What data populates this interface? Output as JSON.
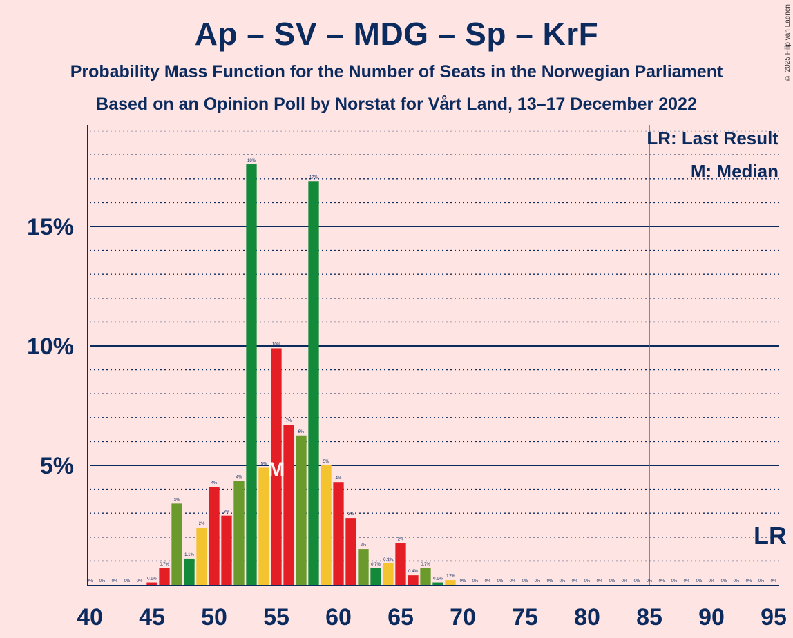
{
  "header": {
    "title": "Ap – SV – MDG – Sp – KrF",
    "subtitle1": "Probability Mass Function for the Number of Seats in the Norwegian Parliament",
    "subtitle2": "Based on an Opinion Poll by Norstat for Vårt Land, 13–17 December 2022",
    "copyright": "© 2025 Filip van Laenen"
  },
  "legend": {
    "lr": "LR: Last Result",
    "m": "M: Median"
  },
  "markers": {
    "median_label": "M",
    "last_result_label": "LR"
  },
  "colors": {
    "background": "#FFE4E4",
    "text": "#0b2a5e",
    "last_result_line": "#e8312f"
  },
  "chart_data": {
    "type": "bar",
    "xlim": [
      40,
      95
    ],
    "ylim": [
      0,
      18.8
    ],
    "x_ticks": [
      40,
      45,
      50,
      55,
      60,
      65,
      70,
      75,
      80,
      85,
      90,
      95
    ],
    "y_ticks": [
      {
        "value": 5,
        "label": "5%"
      },
      {
        "value": 10,
        "label": "10%"
      },
      {
        "value": 15,
        "label": "15%"
      }
    ],
    "median": 55,
    "last_result": 85,
    "grid": true,
    "legend_position": "top-right",
    "bars": [
      {
        "x": 40,
        "value": 0,
        "label": "0%",
        "color": "#e31e24"
      },
      {
        "x": 41,
        "value": 0,
        "label": "0%",
        "color": "#e31e24"
      },
      {
        "x": 42,
        "value": 0,
        "label": "0%",
        "color": "#e31e24"
      },
      {
        "x": 43,
        "value": 0,
        "label": "0%",
        "color": "#e31e24"
      },
      {
        "x": 44,
        "value": 0,
        "label": "0%",
        "color": "#e31e24"
      },
      {
        "x": 45,
        "value": 0.1,
        "label": "0.1%",
        "color": "#e31e24"
      },
      {
        "x": 46,
        "value": 0.7,
        "label": "0.7%",
        "color": "#e31e24"
      },
      {
        "x": 47,
        "value": 3.4,
        "label": "3%",
        "color": "#6a9a2c"
      },
      {
        "x": 48,
        "value": 1.1,
        "label": "1.1%",
        "color": "#138a3a"
      },
      {
        "x": 49,
        "value": 2.4,
        "label": "2%",
        "color": "#f4c430"
      },
      {
        "x": 50,
        "value": 4.1,
        "label": "4%",
        "color": "#e31e24"
      },
      {
        "x": 51,
        "value": 2.9,
        "label": "3%",
        "color": "#e31e24"
      },
      {
        "x": 52,
        "value": 4.35,
        "label": "4%",
        "color": "#6a9a2c"
      },
      {
        "x": 53,
        "value": 17.6,
        "label": "18%",
        "color": "#138a3a"
      },
      {
        "x": 54,
        "value": 4.9,
        "label": "5%",
        "color": "#f4c430"
      },
      {
        "x": 55,
        "value": 9.9,
        "label": "10%",
        "color": "#e31e24"
      },
      {
        "x": 56,
        "value": 6.7,
        "label": "7%",
        "color": "#e31e24"
      },
      {
        "x": 57,
        "value": 6.25,
        "label": "6%",
        "color": "#6a9a2c"
      },
      {
        "x": 58,
        "value": 16.9,
        "label": "17%",
        "color": "#138a3a"
      },
      {
        "x": 59,
        "value": 5.0,
        "label": "5%",
        "color": "#f4c430"
      },
      {
        "x": 60,
        "value": 4.3,
        "label": "4%",
        "color": "#e31e24"
      },
      {
        "x": 61,
        "value": 2.8,
        "label": "3%",
        "color": "#e31e24"
      },
      {
        "x": 62,
        "value": 1.5,
        "label": "2%",
        "color": "#6a9a2c"
      },
      {
        "x": 63,
        "value": 0.7,
        "label": "0.7%",
        "color": "#138a3a"
      },
      {
        "x": 64,
        "value": 0.9,
        "label": "0.9%",
        "color": "#f4c430"
      },
      {
        "x": 65,
        "value": 1.75,
        "label": "2%",
        "color": "#e31e24"
      },
      {
        "x": 66,
        "value": 0.4,
        "label": "0.4%",
        "color": "#e31e24"
      },
      {
        "x": 67,
        "value": 0.7,
        "label": "0.7%",
        "color": "#6a9a2c"
      },
      {
        "x": 68,
        "value": 0.1,
        "label": "0.1%",
        "color": "#138a3a"
      },
      {
        "x": 69,
        "value": 0.2,
        "label": "0.2%",
        "color": "#f4c430"
      },
      {
        "x": 70,
        "value": 0,
        "label": "0%",
        "color": "#e31e24"
      },
      {
        "x": 71,
        "value": 0,
        "label": "0%",
        "color": "#e31e24"
      },
      {
        "x": 72,
        "value": 0,
        "label": "0%",
        "color": "#e31e24"
      },
      {
        "x": 73,
        "value": 0,
        "label": "0%",
        "color": "#e31e24"
      },
      {
        "x": 74,
        "value": 0,
        "label": "0%",
        "color": "#e31e24"
      },
      {
        "x": 75,
        "value": 0,
        "label": "0%",
        "color": "#e31e24"
      },
      {
        "x": 76,
        "value": 0,
        "label": "0%",
        "color": "#e31e24"
      },
      {
        "x": 77,
        "value": 0,
        "label": "0%",
        "color": "#e31e24"
      },
      {
        "x": 78,
        "value": 0,
        "label": "0%",
        "color": "#e31e24"
      },
      {
        "x": 79,
        "value": 0,
        "label": "0%",
        "color": "#e31e24"
      },
      {
        "x": 80,
        "value": 0,
        "label": "0%",
        "color": "#e31e24"
      },
      {
        "x": 81,
        "value": 0,
        "label": "0%",
        "color": "#e31e24"
      },
      {
        "x": 82,
        "value": 0,
        "label": "0%",
        "color": "#e31e24"
      },
      {
        "x": 83,
        "value": 0,
        "label": "0%",
        "color": "#e31e24"
      },
      {
        "x": 84,
        "value": 0,
        "label": "0%",
        "color": "#e31e24"
      },
      {
        "x": 85,
        "value": 0,
        "label": "0%",
        "color": "#e31e24"
      },
      {
        "x": 86,
        "value": 0,
        "label": "0%",
        "color": "#e31e24"
      },
      {
        "x": 87,
        "value": 0,
        "label": "0%",
        "color": "#e31e24"
      },
      {
        "x": 88,
        "value": 0,
        "label": "0%",
        "color": "#e31e24"
      },
      {
        "x": 89,
        "value": 0,
        "label": "0%",
        "color": "#e31e24"
      },
      {
        "x": 90,
        "value": 0,
        "label": "0%",
        "color": "#e31e24"
      },
      {
        "x": 91,
        "value": 0,
        "label": "0%",
        "color": "#e31e24"
      },
      {
        "x": 92,
        "value": 0,
        "label": "0%",
        "color": "#e31e24"
      },
      {
        "x": 93,
        "value": 0,
        "label": "0%",
        "color": "#e31e24"
      },
      {
        "x": 94,
        "value": 0,
        "label": "0%",
        "color": "#e31e24"
      },
      {
        "x": 95,
        "value": 0,
        "label": "0%",
        "color": "#e31e24"
      }
    ]
  }
}
